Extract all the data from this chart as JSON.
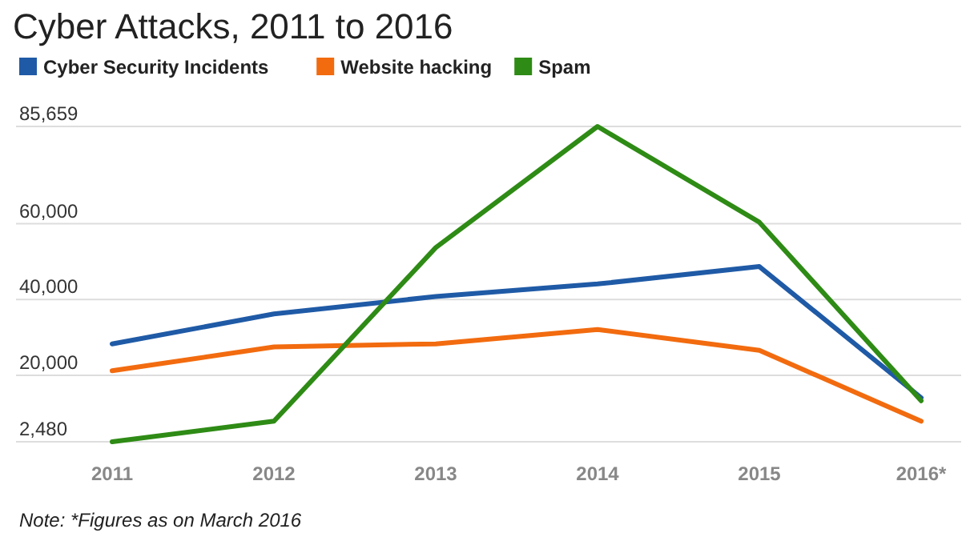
{
  "chart_data": {
    "type": "line",
    "title": "Cyber Attacks, 2011 to 2016",
    "categories": [
      "2011",
      "2012",
      "2013",
      "2014",
      "2015",
      "2016*"
    ],
    "series": [
      {
        "name": "Cyber Security Incidents",
        "color": "#1f5aa6",
        "values": [
          28300,
          36200,
          40800,
          44100,
          48700,
          14100
        ]
      },
      {
        "name": "Website hacking",
        "color": "#f26b0f",
        "values": [
          21200,
          27500,
          28300,
          32100,
          26600,
          7900
        ]
      },
      {
        "name": "Spam",
        "color": "#2e8b15",
        "values": [
          2480,
          7900,
          53700,
          85659,
          60400,
          13300
        ]
      }
    ],
    "ylim": [
      2480,
      85659
    ],
    "yticks": [
      {
        "value": 2480,
        "label": "2,480"
      },
      {
        "value": 20000,
        "label": "20,000"
      },
      {
        "value": 40000,
        "label": "40,000"
      },
      {
        "value": 60000,
        "label": "60,000"
      },
      {
        "value": 85659,
        "label": "85,659"
      }
    ],
    "grid": "y",
    "legend": "top left",
    "marker": "none",
    "line_style": "solid",
    "annotations": [
      "Note: *Figures as on March 2016"
    ]
  }
}
